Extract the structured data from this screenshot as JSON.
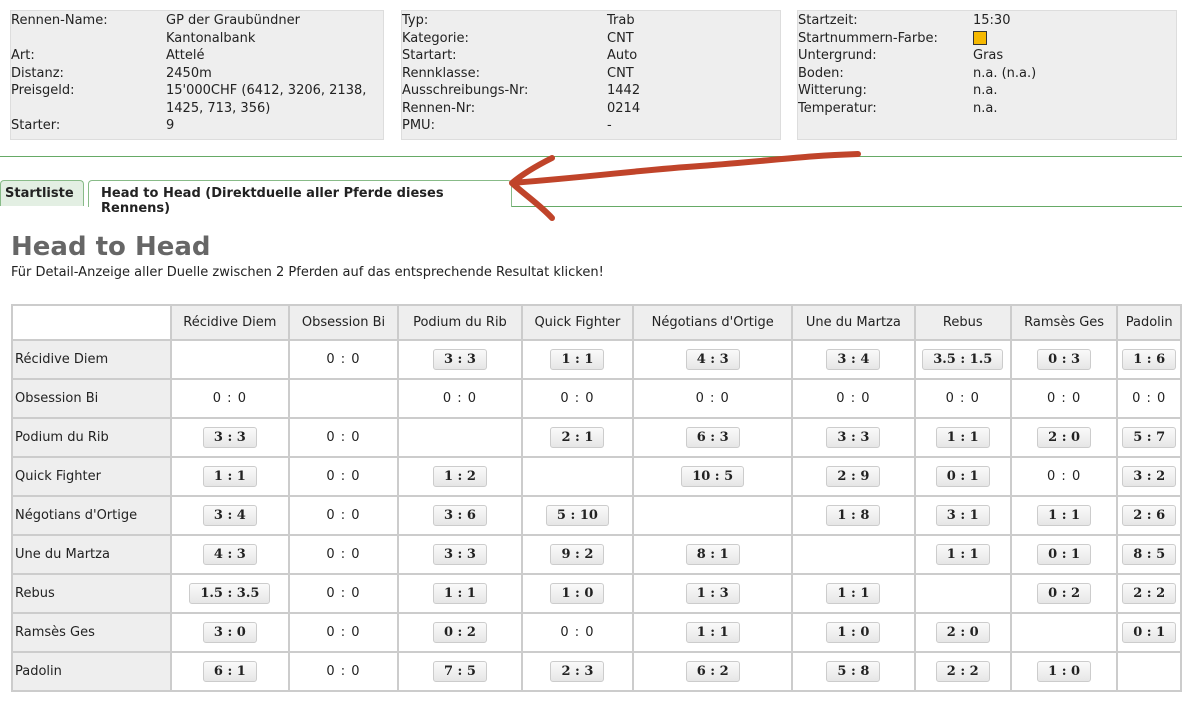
{
  "info": [
    [
      [
        "Rennen-Name:",
        "GP der Graubündner Kantonalbank"
      ],
      [
        "Art:",
        "Attelé"
      ],
      [
        "Distanz:",
        "2450m"
      ],
      [
        "Preisgeld:",
        "15'000CHF (6412, 3206, 2138, 1425, 713, 356)"
      ],
      [
        "Starter:",
        "9"
      ]
    ],
    [
      [
        "Typ:",
        "Trab"
      ],
      [
        "Kategorie:",
        "CNT"
      ],
      [
        "Startart:",
        "Auto"
      ],
      [
        "Rennklasse:",
        "CNT"
      ],
      [
        "Ausschreibungs-Nr:",
        "1442"
      ],
      [
        "Rennen-Nr:",
        "0214"
      ],
      [
        "PMU:",
        "-"
      ]
    ],
    [
      [
        "Startzeit:",
        "15:30"
      ],
      [
        "Startnummern-Farbe:",
        ""
      ],
      [
        "Untergrund:",
        "Gras"
      ],
      [
        "Boden:",
        "n.a. (n.a.)"
      ],
      [
        "Witterung:",
        "n.a."
      ],
      [
        "Temperatur:",
        "n.a."
      ]
    ]
  ],
  "startnummer_color": "#f5b800",
  "tabs": [
    "Startliste",
    "Head to Head (Direktduelle aller Pferde dieses Rennens)"
  ],
  "active_tab": 1,
  "title": "Head to Head",
  "subtitle": "Für Detail-Anzeige aller Duelle zwischen 2 Pferden auf das entsprechende Resultat klicken!",
  "horses": [
    "Récidive Diem",
    "Obsession Bi",
    "Podium du Rib",
    "Quick Fighter",
    "Négotians d'Ortige",
    "Une du Martza",
    "Rebus",
    "Ramsès Ges",
    "Padolin"
  ],
  "matrix": [
    [
      "",
      "0 : 0",
      "3 : 3",
      "1 : 1",
      "4 : 3",
      "3 : 4",
      "3.5 : 1.5",
      "0 : 3",
      "1 : 6"
    ],
    [
      "0 : 0",
      "",
      "0 : 0",
      "0 : 0",
      "0 : 0",
      "0 : 0",
      "0 : 0",
      "0 : 0",
      "0 : 0"
    ],
    [
      "3 : 3",
      "0 : 0",
      "",
      "2 : 1",
      "6 : 3",
      "3 : 3",
      "1 : 1",
      "2 : 0",
      "5 : 7"
    ],
    [
      "1 : 1",
      "0 : 0",
      "1 : 2",
      "",
      "10 : 5",
      "2 : 9",
      "0 : 1",
      "0 : 0",
      "3 : 2"
    ],
    [
      "3 : 4",
      "0 : 0",
      "3 : 6",
      "5 : 10",
      "",
      "1 : 8",
      "3 : 1",
      "1 : 1",
      "2 : 6"
    ],
    [
      "4 : 3",
      "0 : 0",
      "3 : 3",
      "9 : 2",
      "8 : 1",
      "",
      "1 : 1",
      "0 : 1",
      "8 : 5"
    ],
    [
      "1.5 : 3.5",
      "0 : 0",
      "1 : 1",
      "1 : 0",
      "1 : 3",
      "1 : 1",
      "",
      "0 : 2",
      "2 : 2"
    ],
    [
      "3 : 0",
      "0 : 0",
      "0 : 2",
      "0 : 0",
      "1 : 1",
      "1 : 0",
      "2 : 0",
      "",
      "0 : 1"
    ],
    [
      "6 : 1",
      "0 : 0",
      "7 : 5",
      "2 : 3",
      "6 : 2",
      "5 : 8",
      "2 : 2",
      "1 : 0",
      ""
    ]
  ],
  "annotation_color": "#c0442a"
}
